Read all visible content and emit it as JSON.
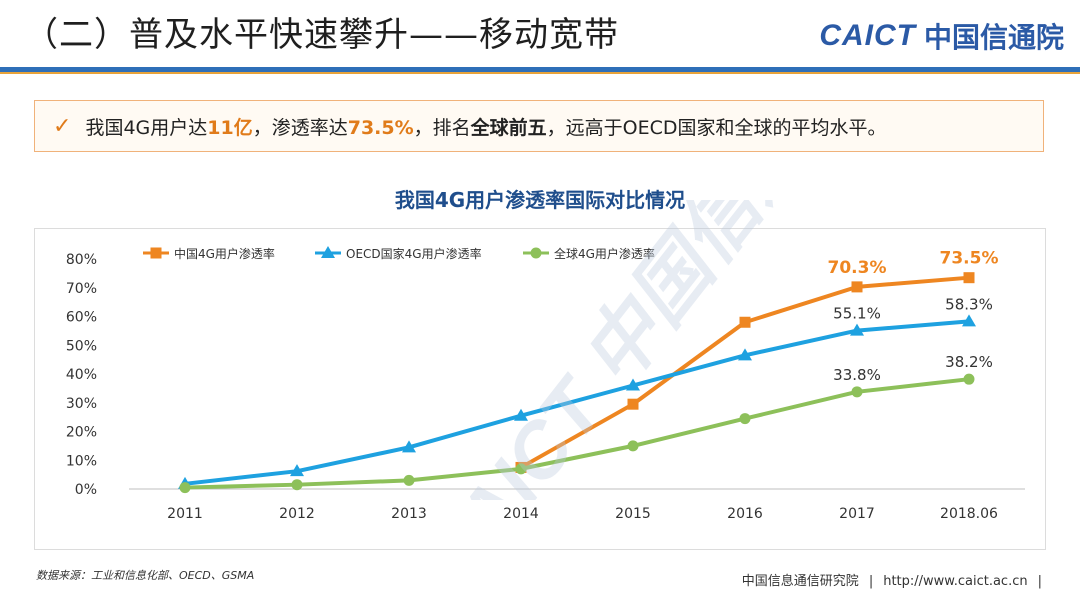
{
  "header": {
    "title": "（二）普及水平快速攀升——移动宽带",
    "logo_en": "CAICT",
    "logo_cn": "中国信通院"
  },
  "callout": {
    "part1": "我国4G用户达",
    "hl1": "11亿",
    "part2": "，渗透率达",
    "hl2": "73.5%",
    "part3": "，排名",
    "hl3": "全球前五",
    "part4": "，远高于OECD国家和全球的平均水平。"
  },
  "watermark": {
    "text": "CAICT 中国信通院"
  },
  "chart_data": {
    "type": "line",
    "title": "我国4G用户渗透率国际对比情况",
    "categories": [
      "2011",
      "2012",
      "2013",
      "2014",
      "2015",
      "2016",
      "2017",
      "2018.06"
    ],
    "ylim": [
      0,
      80
    ],
    "yticks": [
      "0%",
      "10%",
      "20%",
      "30%",
      "40%",
      "50%",
      "60%",
      "70%",
      "80%"
    ],
    "legend_position": "top-left",
    "series": [
      {
        "name": "中国4G用户渗透率",
        "color": "#ee8621",
        "marker": "square",
        "values": [
          null,
          null,
          null,
          7.5,
          29.5,
          58,
          70.3,
          73.5
        ],
        "labels": [
          "",
          "",
          "",
          "",
          "",
          "",
          "70.3%",
          "73.5%"
        ]
      },
      {
        "name": "OECD国家4G用户渗透率",
        "color": "#1ea1e0",
        "marker": "triangle",
        "values": [
          1.8,
          6.2,
          14.5,
          25.5,
          36,
          46.5,
          55.1,
          58.3
        ],
        "labels": [
          "",
          "",
          "",
          "",
          "",
          "",
          "55.1%",
          "58.3%"
        ]
      },
      {
        "name": "全球4G用户渗透率",
        "color": "#8dc05a",
        "marker": "circle",
        "values": [
          0.5,
          1.5,
          3,
          7,
          15,
          24.5,
          33.8,
          38.2
        ],
        "labels": [
          "",
          "",
          "",
          "",
          "",
          "",
          "33.8%",
          "38.2%"
        ]
      }
    ]
  },
  "footer": {
    "source": "数据来源：工业和信息化部、OECD、GSMA",
    "org": "中国信息通信研究院",
    "url": "http://www.caict.ac.cn"
  }
}
